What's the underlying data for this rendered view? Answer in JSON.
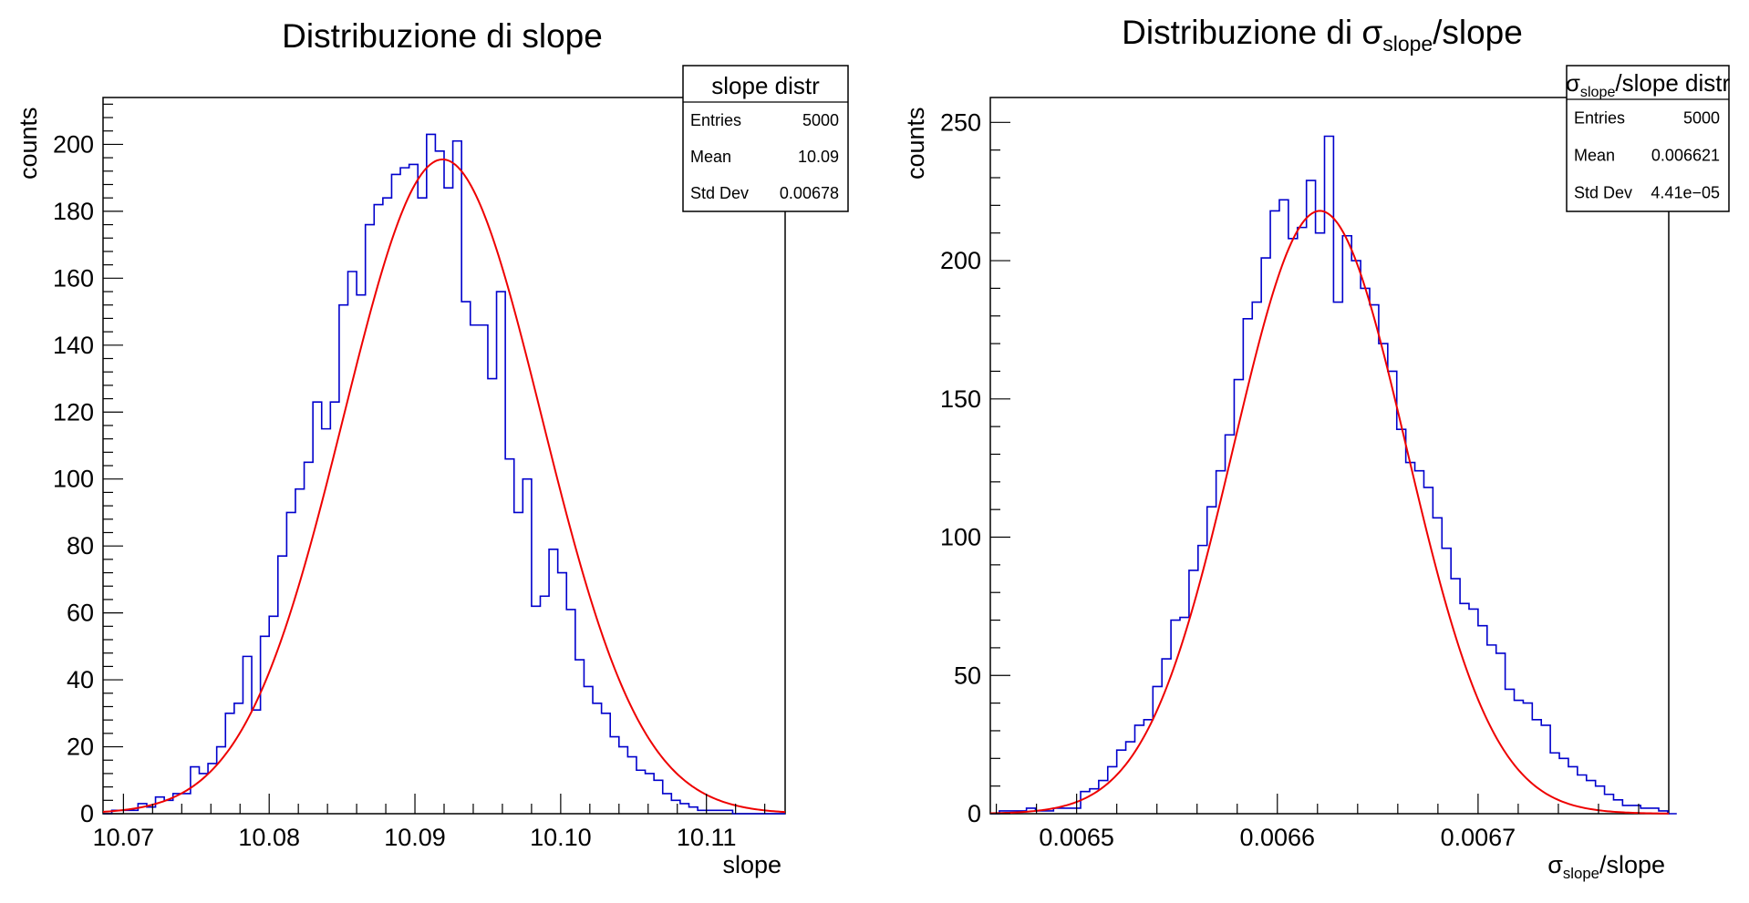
{
  "colors": {
    "histogram": "#0000cc",
    "fit": "#ee0000",
    "axis": "#000000",
    "background": "#ffffff"
  },
  "panels": [
    {
      "title": "Distribuzione di slope",
      "title_parts": [
        {
          "t": "Distribuzione di slope"
        }
      ],
      "xlabel": "slope",
      "xlabel_parts": [
        {
          "t": "slope"
        }
      ],
      "ylabel": "counts",
      "stats": {
        "title": "slope distr",
        "title_parts": [
          {
            "t": "slope distr"
          }
        ],
        "rows": [
          {
            "label": "Entries",
            "value": "5000"
          },
          {
            "label": "Mean",
            "value": "10.09"
          },
          {
            "label": "Std Dev",
            "value": "0.00678"
          }
        ]
      },
      "chart_data": {
        "type": "bar",
        "xlim": [
          10.0686,
          10.1154
        ],
        "ylim": [
          0,
          214
        ],
        "x_ticks": [
          10.07,
          10.08,
          10.09,
          10.1,
          10.11
        ],
        "x_tick_labels": [
          "10.07",
          "10.08",
          "10.09",
          "10.10",
          "10.11"
        ],
        "x_minor_step": 0.002,
        "y_ticks": [
          0,
          20,
          40,
          60,
          80,
          100,
          120,
          140,
          160,
          180,
          200
        ],
        "y_tick_labels": [
          "0",
          "20",
          "40",
          "60",
          "80",
          "100",
          "120",
          "140",
          "160",
          "180",
          "200"
        ],
        "y_minor_step": 4,
        "bins_start": 10.0686,
        "bin_width": 0.0006,
        "counts": [
          0,
          1,
          1,
          1,
          3,
          2,
          5,
          4,
          6,
          6,
          14,
          12,
          15,
          20,
          30,
          33,
          47,
          31,
          53,
          59,
          77,
          90,
          97,
          105,
          123,
          115,
          123,
          152,
          162,
          155,
          176,
          182,
          184,
          191,
          193,
          194,
          184,
          203,
          198,
          187,
          201,
          153,
          146,
          146,
          130,
          156,
          106,
          90,
          100,
          62,
          65,
          79,
          72,
          61,
          46,
          38,
          33,
          30,
          23,
          20,
          17,
          13,
          12,
          10,
          6,
          4,
          3,
          2,
          1,
          1,
          1,
          1,
          0,
          0,
          0,
          0,
          0,
          0
        ],
        "fit": {
          "type": "gaussian",
          "constant": 195.5,
          "mean": 10.0919,
          "sigma": 0.0068
        }
      }
    },
    {
      "title": "Distribuzione di σslope/slope",
      "title_parts": [
        {
          "t": "Distribuzione di "
        },
        {
          "t": "σ"
        },
        {
          "t": "slope",
          "sub": true
        },
        {
          "t": "/slope"
        }
      ],
      "xlabel": "σslope/slope",
      "xlabel_parts": [
        {
          "t": "σ"
        },
        {
          "t": "slope",
          "sub": true
        },
        {
          "t": "/slope"
        }
      ],
      "ylabel": "counts",
      "stats": {
        "title": "σslope/slope distr",
        "title_parts": [
          {
            "t": "σ"
          },
          {
            "t": "slope",
            "sub": true
          },
          {
            "t": "/slope distr"
          }
        ],
        "rows": [
          {
            "label": "Entries",
            "value": "5000"
          },
          {
            "label": "Mean",
            "value": "0.006621"
          },
          {
            "label": "Std Dev",
            "value": "4.41e−05"
          }
        ]
      },
      "chart_data": {
        "type": "bar",
        "xlim": [
          0.006457,
          0.006795
        ],
        "ylim": [
          0,
          259
        ],
        "x_ticks": [
          0.0065,
          0.0066,
          0.0067
        ],
        "x_tick_labels": [
          "0.0065",
          "0.0066",
          "0.0067"
        ],
        "x_minor_step": 2e-05,
        "y_ticks": [
          0,
          50,
          100,
          150,
          200,
          250
        ],
        "y_tick_labels": [
          "0",
          "50",
          "100",
          "150",
          "200",
          "250"
        ],
        "y_minor_step": 10,
        "bins_start": 0.006457,
        "bin_width": 4.5e-06,
        "counts": [
          0,
          1,
          1,
          1,
          2,
          1,
          1,
          2,
          2,
          2,
          8,
          9,
          12,
          17,
          23,
          26,
          32,
          34,
          46,
          56,
          70,
          71,
          88,
          97,
          111,
          124,
          137,
          157,
          179,
          185,
          201,
          218,
          222,
          208,
          212,
          229,
          210,
          245,
          185,
          209,
          200,
          190,
          184,
          170,
          160,
          139,
          127,
          124,
          118,
          107,
          96,
          85,
          76,
          74,
          68,
          61,
          58,
          45,
          41,
          40,
          34,
          32,
          22,
          20,
          17,
          14,
          12,
          10,
          7,
          5,
          3,
          3,
          2,
          2,
          1,
          0
        ],
        "fit": {
          "type": "gaussian",
          "constant": 218,
          "mean": 0.0066212,
          "sigma": 4.32e-05
        }
      }
    }
  ]
}
